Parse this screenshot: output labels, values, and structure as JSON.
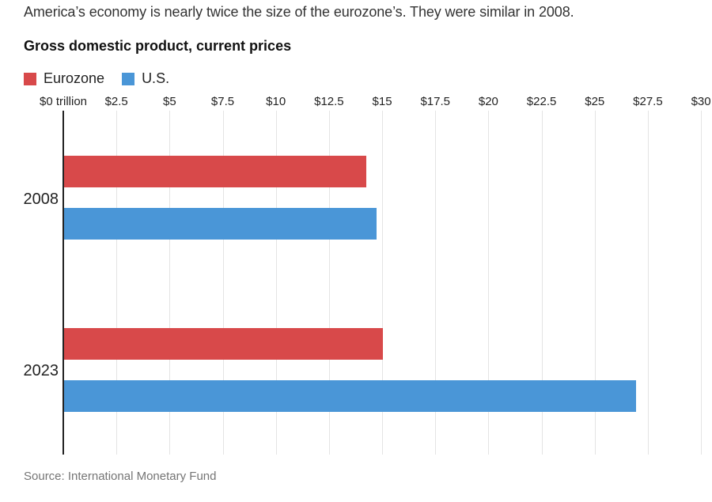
{
  "title": "America’s economy is nearly twice the size of the eurozone’s. They were similar in 2008.",
  "subtitle": "Gross domestic product, current prices",
  "legend": [
    {
      "label": "Eurozone",
      "color": "#d8494a"
    },
    {
      "label": "U.S.",
      "color": "#4a96d7"
    }
  ],
  "source": "Source: International Monetary Fund",
  "chart_data": {
    "type": "bar",
    "orientation": "horizontal",
    "title": "Gross domestic product, current prices",
    "xlabel": "$ trillion",
    "ylabel": "",
    "categories": [
      "2008",
      "2023"
    ],
    "series": [
      {
        "name": "Eurozone",
        "color": "#d8494a",
        "values": [
          14.2,
          15.0
        ]
      },
      {
        "name": "U.S.",
        "color": "#4a96d7",
        "values": [
          14.7,
          26.9
        ]
      }
    ],
    "x_axis": {
      "min": 0,
      "max": 30,
      "tick_values": [
        0,
        2.5,
        5,
        7.5,
        10,
        12.5,
        15,
        17.5,
        20,
        22.5,
        25,
        27.5,
        30
      ],
      "tick_labels": [
        "$0 trillion",
        "$2.5",
        "$5",
        "$7.5",
        "$10",
        "$12.5",
        "$15",
        "$17.5",
        "$20",
        "$22.5",
        "$25",
        "$27.5",
        "$30"
      ]
    },
    "grid": true,
    "legend_position": "top-left"
  },
  "colors": {
    "axis_line": "#222222",
    "gridline": "#e4e4e4",
    "text_dark": "#222222",
    "text_muted": "#757575"
  }
}
